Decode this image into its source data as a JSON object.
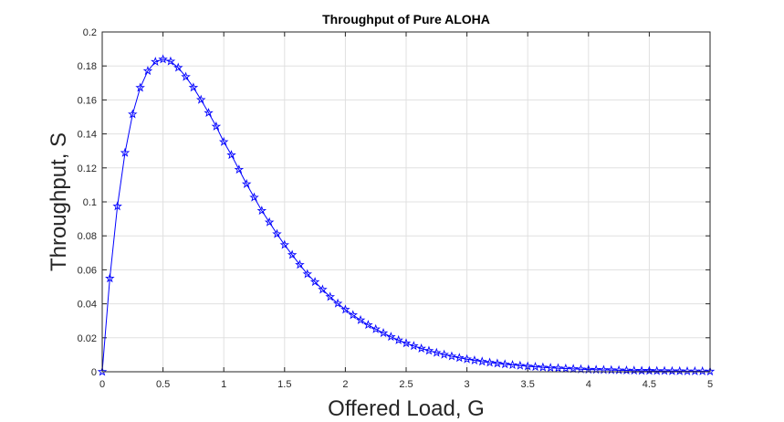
{
  "chart_data": {
    "type": "line",
    "title": "Throughput of Pure ALOHA",
    "xlabel": "Offered Load, G",
    "ylabel": "Throughput, S",
    "xlim": [
      0,
      5
    ],
    "ylim": [
      0,
      0.2
    ],
    "grid": true,
    "marker": "pentagram",
    "colors": {
      "line": "#0000ff",
      "axes": "#262626",
      "grid": "#e0e0e0"
    },
    "xticks": [
      "0",
      "0.5",
      "1",
      "1.5",
      "2",
      "2.5",
      "3",
      "3.5",
      "4",
      "4.5",
      "5"
    ],
    "yticks": [
      "0",
      "0.02",
      "0.04",
      "0.06",
      "0.08",
      "0.1",
      "0.12",
      "0.14",
      "0.16",
      "0.18",
      "0.2"
    ],
    "series": [
      {
        "x": [
          0,
          0.0625,
          0.125,
          0.1875,
          0.25,
          0.3125,
          0.375,
          0.4375,
          0.5,
          0.5625,
          0.625,
          0.6875,
          0.75,
          0.8125,
          0.875,
          0.9375,
          1,
          1.0625,
          1.125,
          1.1875,
          1.25,
          1.3125,
          1.375,
          1.4375,
          1.5,
          1.5625,
          1.625,
          1.6875,
          1.75,
          1.8125,
          1.875,
          1.9375,
          2,
          2.0625,
          2.125,
          2.1875,
          2.25,
          2.3125,
          2.375,
          2.4375,
          2.5,
          2.5625,
          2.625,
          2.6875,
          2.75,
          2.8125,
          2.875,
          2.9375,
          3,
          3.0625,
          3.125,
          3.1875,
          3.25,
          3.3125,
          3.375,
          3.4375,
          3.5,
          3.5625,
          3.625,
          3.6875,
          3.75,
          3.8125,
          3.875,
          3.9375,
          4,
          4.0625,
          4.125,
          4.1875,
          4.25,
          4.3125,
          4.375,
          4.4375,
          4.5,
          4.5625,
          4.625,
          4.6875,
          4.75,
          4.8125,
          4.875,
          4.9375,
          5
        ],
        "y": [
          0,
          0.055,
          0.0974,
          0.1289,
          0.1516,
          0.1672,
          0.1771,
          0.1825,
          0.1839,
          0.1827,
          0.179,
          0.1736,
          0.1673,
          0.1601,
          0.1524,
          0.1444,
          0.1353,
          0.1276,
          0.119,
          0.1105,
          0.1026,
          0.0948,
          0.088,
          0.0811,
          0.0747,
          0.0688,
          0.063,
          0.0575,
          0.0529,
          0.0484,
          0.0441,
          0.0402,
          0.0366,
          0.0334,
          0.0304,
          0.0276,
          0.0251,
          0.0228,
          0.0206,
          0.0186,
          0.0168,
          0.0152,
          0.0137,
          0.0124,
          0.0112,
          0.0101,
          0.0091,
          0.0082,
          0.0074,
          0.0067,
          0.006,
          0.0054,
          0.0049,
          0.0044,
          0.004,
          0.0036,
          0.0032,
          0.0029,
          0.0026,
          0.0023,
          0.0021,
          0.0019,
          0.0017,
          0.0015,
          0.0013,
          0.0012,
          0.0011,
          0.001,
          0.0009,
          0.0008,
          0.0007,
          0.0006,
          0.0006,
          0.0005,
          0.0005,
          0.0004,
          0.0004,
          0.0003,
          0.0003,
          0.0003,
          0.0002
        ]
      }
    ]
  }
}
